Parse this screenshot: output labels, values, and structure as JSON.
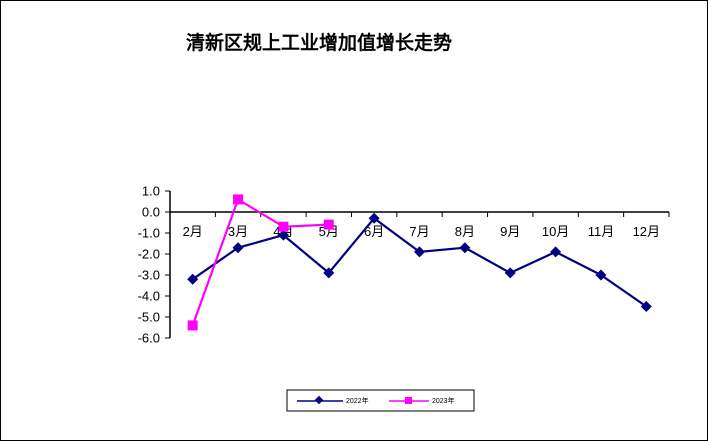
{
  "chart_data": {
    "type": "line",
    "title": "清新区规上工业增加值增长走势",
    "xlabel": "",
    "ylabel": "",
    "categories": [
      "2月",
      "3月",
      "4月",
      "5月",
      "6月",
      "7月",
      "8月",
      "9月",
      "10月",
      "11月",
      "12月"
    ],
    "ylim": [
      -6.0,
      1.0
    ],
    "yticks": [
      "1.0",
      "0.0",
      "-1.0",
      "-2.0",
      "-3.0",
      "-4.0",
      "-5.0",
      "-6.0"
    ],
    "grid": false,
    "legend_position": "bottom-center",
    "series": [
      {
        "name": "2022年",
        "color": "#000080",
        "marker": "diamond",
        "values": [
          -3.2,
          -1.7,
          -1.1,
          -2.9,
          -0.3,
          -1.9,
          -1.7,
          -2.9,
          -1.9,
          -3.0,
          -4.5
        ]
      },
      {
        "name": "2023年",
        "color": "#ff00ff",
        "marker": "square",
        "values": [
          -5.4,
          0.6,
          -0.7,
          -0.6,
          null,
          null,
          null,
          null,
          null,
          null,
          null
        ]
      }
    ]
  }
}
